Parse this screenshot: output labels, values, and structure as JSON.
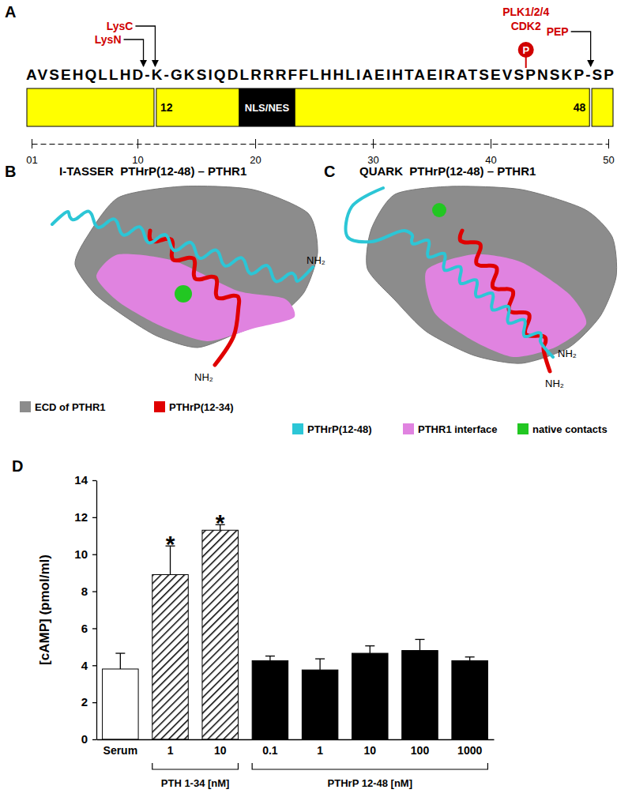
{
  "panel_a": {
    "label": "A",
    "sequence": "AVSEHQLLHD-K-GKSIQDLRRRFFLHHLIAEIHTAEIRATSEVSPNSKP-SP",
    "segments": [
      {
        "from": 1,
        "to": 11
      },
      {
        "from": 12,
        "to": 48,
        "start_label": "12",
        "end_label": "48"
      },
      {
        "from": 49,
        "to": 50
      }
    ],
    "motif": {
      "from": 19,
      "to": 23,
      "label": "NLS/NES"
    },
    "cleavage_sites": [
      {
        "label": "LysN",
        "position": 10.5
      },
      {
        "label": "LysC",
        "position": 11.5
      },
      {
        "label": "PEP",
        "position": 48.5
      }
    ],
    "phospho_site": {
      "position": 43,
      "labels": [
        "PLK1/2/4",
        "CDK2"
      ],
      "symbol": "P"
    },
    "axis": {
      "lim": [
        1,
        50
      ],
      "ticks": [
        {
          "value": 1,
          "label": "01"
        },
        10,
        20,
        30,
        40,
        50
      ]
    }
  },
  "panel_b": {
    "label": "B",
    "title": "I-TASSER  PTHrP(12-48) – PTHR1",
    "terminus_labels": [
      "NH₂",
      "NH₂"
    ]
  },
  "panel_c": {
    "label": "C",
    "title": "QUARK  PTHrP(12-48) – PTHR1",
    "terminus_labels": [
      "NH₂",
      "NH₂"
    ]
  },
  "legend": [
    {
      "name": "ECD of PTHR1",
      "color": "#8c8c8c"
    },
    {
      "name": "PTHrP(12-34)",
      "color": "#e00000"
    },
    {
      "name": "PTHrP(12-48)",
      "color": "#2cc6d6"
    },
    {
      "name": "PTHR1 interface",
      "color": "#e083e0"
    },
    {
      "name": "native contacts",
      "color": "#22c722"
    }
  ],
  "chart_data": {
    "type": "bar",
    "title": "D",
    "y_label": "[cAMP] (pmol/ml)",
    "categories": [
      "Serum",
      "1",
      "10",
      "0.1",
      "1",
      "10",
      "100",
      "1000"
    ],
    "values": [
      3.8,
      8.9,
      11.3,
      4.25,
      3.75,
      4.65,
      4.8,
      4.25
    ],
    "errors": [
      0.85,
      1.55,
      0.3,
      0.25,
      0.6,
      0.4,
      0.6,
      0.2
    ],
    "colors": [
      "#ffffff",
      "hatch",
      "hatch",
      "#000000",
      "#000000",
      "#000000",
      "#000000",
      "#000000"
    ],
    "ylim": [
      0,
      14
    ],
    "yticks": [
      0,
      2,
      4,
      6,
      8,
      10,
      12,
      14
    ],
    "annotations": [
      {
        "text": "*",
        "category": 1
      },
      {
        "text": "*",
        "category": 2
      }
    ],
    "groups": [
      {
        "label": "PTH 1-34 [nM]",
        "from": 1,
        "to": 2
      },
      {
        "label": "PTHrP 12-48 [nM]",
        "from": 3,
        "to": 7
      }
    ]
  }
}
